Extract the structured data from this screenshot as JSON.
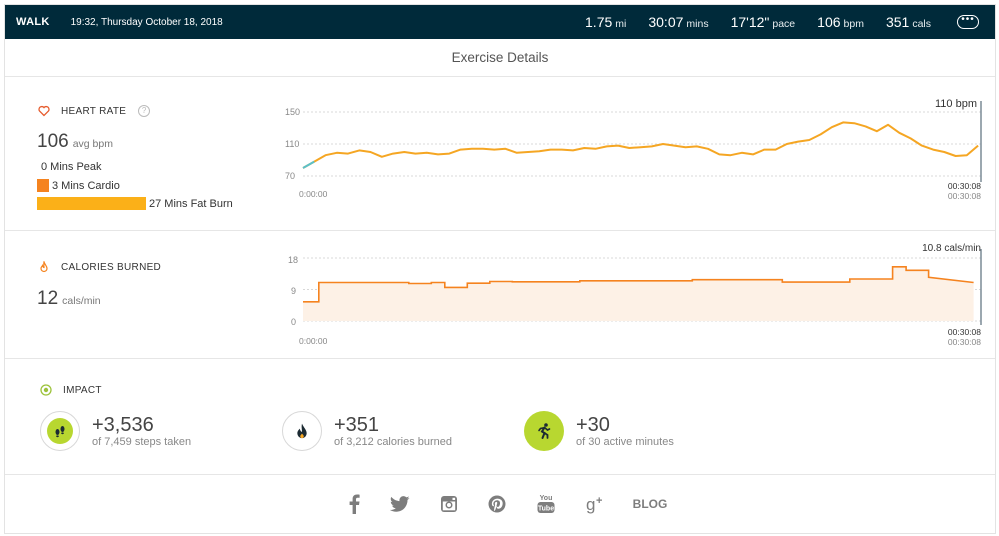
{
  "header": {
    "activity": "WALK",
    "datetime": "19:32, Thursday October 18, 2018",
    "stats": [
      {
        "value": "1.75",
        "unit": "mi"
      },
      {
        "value": "30:07",
        "unit": "mins"
      },
      {
        "value": "17'12\"",
        "unit": "pace"
      },
      {
        "value": "106",
        "unit": "bpm"
      },
      {
        "value": "351",
        "unit": "cals"
      }
    ],
    "more_icon": "ellipsis-icon"
  },
  "title": "Exercise Details",
  "heart_rate": {
    "label": "HEART RATE",
    "help": "?",
    "avg_value": "106",
    "avg_unit": "avg bpm",
    "zones": [
      {
        "label": "0 Mins Peak",
        "minutes": 0,
        "color": "#e65c2e"
      },
      {
        "label": "3 Mins Cardio",
        "minutes": 3,
        "color": "#f5831f"
      },
      {
        "label": "27 Mins Fat Burn",
        "minutes": 27,
        "color": "#fbb018"
      }
    ],
    "current": "110 bpm",
    "y_ticks": [
      "150",
      "110",
      "70"
    ],
    "start_time": "0:00:00",
    "end_time_a": "00:30:08",
    "end_time_b": "00:30:08"
  },
  "calories": {
    "label": "CALORIES BURNED",
    "value": "12",
    "unit": "cals/min",
    "current": "10.8 cals/min",
    "y_ticks": [
      "18",
      "9",
      "0"
    ],
    "start_time": "0:00:00",
    "end_time_a": "00:30:08",
    "end_time_b": "00:30:08"
  },
  "impact": {
    "label": "IMPACT",
    "items": [
      {
        "value": "+3,536",
        "sub": "of 7,459 steps taken",
        "icon": "footsteps-icon"
      },
      {
        "value": "+351",
        "sub": "of 3,212 calories burned",
        "icon": "flame-icon"
      },
      {
        "value": "+30",
        "sub": "of 30 active minutes",
        "icon": "runner-icon"
      }
    ]
  },
  "footer": {
    "icons": [
      "facebook-icon",
      "twitter-icon",
      "instagram-icon",
      "pinterest-icon",
      "youtube-icon",
      "google-plus-icon"
    ],
    "blog": "BLOG"
  },
  "chart_data": [
    {
      "type": "line",
      "title": "HEART RATE",
      "ylabel": "bpm",
      "ylim": [
        70,
        150
      ],
      "x_ticks": [
        "0:00:00",
        "00:30:08"
      ],
      "x": [
        0,
        0.5,
        1,
        1.5,
        2,
        2.5,
        3,
        3.5,
        4,
        4.5,
        5,
        5.5,
        6,
        6.5,
        7,
        7.5,
        8,
        8.5,
        9,
        9.5,
        10,
        10.5,
        11,
        11.5,
        12,
        12.5,
        13,
        13.5,
        14,
        14.5,
        15,
        15.5,
        16,
        16.5,
        17,
        17.5,
        18,
        18.5,
        19,
        19.5,
        20,
        20.5,
        21,
        21.5,
        22,
        22.5,
        23,
        23.5,
        24,
        24.5,
        25,
        25.5,
        26,
        26.5,
        27,
        27.5,
        28,
        28.5,
        29,
        29.5,
        30
      ],
      "series": [
        {
          "values": [
            80,
            88,
            96,
            99,
            98,
            102,
            100,
            94,
            98,
            100,
            98,
            99,
            97,
            98,
            103,
            104,
            104,
            103,
            104,
            99,
            100,
            101,
            103,
            103,
            102,
            105,
            104,
            107,
            108,
            105,
            106,
            107,
            110,
            108,
            106,
            107,
            104,
            97,
            96,
            99,
            97,
            103,
            103,
            110,
            113,
            115,
            122,
            131,
            137,
            136,
            132,
            126,
            134,
            124,
            117,
            108,
            103,
            100,
            95,
            96,
            108
          ]
        }
      ]
    },
    {
      "type": "area",
      "title": "CALORIES BURNED",
      "ylabel": "cals/min",
      "ylim": [
        0,
        18
      ],
      "x_ticks": [
        "0:00:00",
        "00:30:08"
      ],
      "x": [
        0,
        0.7,
        0.7,
        4.7,
        4.7,
        5.7,
        5.7,
        6.3,
        6.3,
        7.3,
        7.3,
        8.3,
        8.3,
        9.3,
        9.3,
        12.3,
        12.3,
        17.3,
        17.3,
        21.3,
        21.3,
        24.3,
        24.3,
        26.2,
        26.2,
        26.8,
        26.8,
        27.8,
        27.8,
        29.8
      ],
      "series": [
        {
          "values": [
            5.5,
            5.5,
            11,
            11,
            10.7,
            10.7,
            11,
            11,
            9.6,
            9.6,
            10.8,
            10.8,
            11.3,
            11.3,
            11.2,
            11.2,
            11.5,
            11.5,
            11.8,
            11.8,
            11.1,
            11.1,
            12,
            12,
            15.5,
            15.5,
            14.5,
            14.5,
            12.5,
            11
          ]
        }
      ]
    }
  ]
}
